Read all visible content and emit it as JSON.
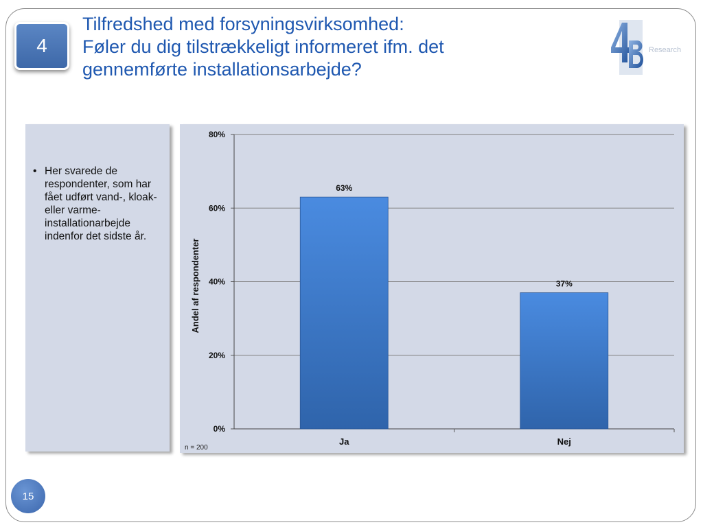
{
  "slide": {
    "section_number": "4",
    "title_lines": [
      "Tilfredshed med forsyningsvirksomhed:",
      "Føler du dig tilstrækkeligt informeret ifm. det",
      "gennemførte installationsarbejde?"
    ],
    "logo_text": "Research",
    "logo_icon": "4b-logo-icon",
    "page_number": "15"
  },
  "note": {
    "bullet": "Her svarede de respondenter, som har fået udført vand-, kloak- eller varme-installationarbejde indenfor det sidste år."
  },
  "chart_data": {
    "type": "bar",
    "categories": [
      "Ja",
      "Nej"
    ],
    "values": [
      63,
      37
    ],
    "data_labels": [
      "63%",
      "37%"
    ],
    "title": "",
    "xlabel": "",
    "ylabel": "Andel af respondenter",
    "ylim": [
      0,
      80
    ],
    "yticks": [
      "0%",
      "20%",
      "40%",
      "60%",
      "80%"
    ],
    "grid": true,
    "footnote": "n = 200",
    "bar_color": "#3f7fd0",
    "background": "#d3d9e7"
  }
}
